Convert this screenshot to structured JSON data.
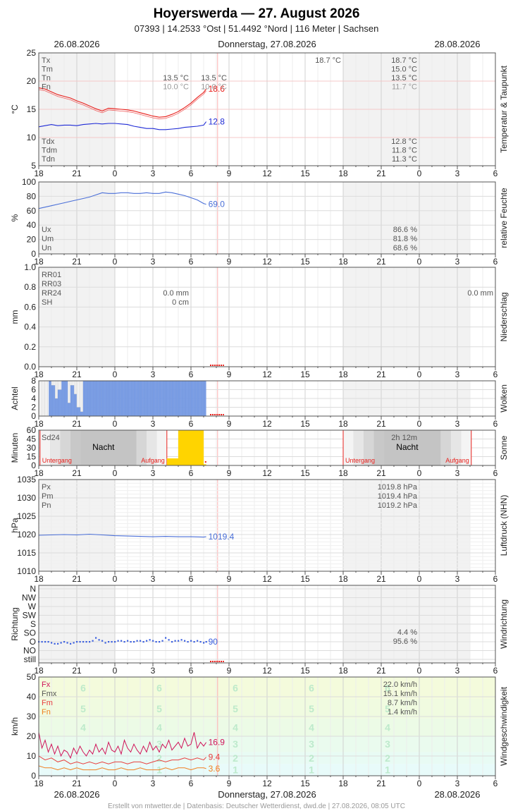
{
  "header": {
    "title": "Hoyerswerda  —  27. August 2026",
    "subtitle": "07393  |  14.2533 °Ost  |  51.4492 °Nord  |  116 Meter  |  Sachsen",
    "date_left": "26.08.2026",
    "date_center": "Donnerstag, 27.08.2026",
    "date_right": "28.08.2026"
  },
  "footer": {
    "date_left": "26.08.2026",
    "date_center": "Donnerstag, 27.08.2026",
    "date_right": "28.08.2026",
    "credit": "Erstellt von mtwetter.de | Datenbasis: Deutscher Wetterdienst, dwd.de | 27.08.2026, 08:05 UTC"
  },
  "x_ticks": [
    "18",
    "21",
    "0",
    "3",
    "6",
    "9",
    "12",
    "15",
    "18",
    "21",
    "0",
    "3",
    "6"
  ],
  "colors": {
    "red": "#e8201c",
    "blue": "#1f2bd6",
    "steel": "#4a6fd8",
    "orange": "#f08020",
    "magenta": "#d0145a",
    "cloud": "#7a9ee6",
    "sun": "#ffd400",
    "now": "#ff8080"
  },
  "chart_data": [
    {
      "id": "temp",
      "type": "line",
      "side_label": "Temperatur & Taupunkt",
      "ylabel": "°C",
      "ylim": [
        5,
        25
      ],
      "y_ticks": [
        "5",
        "10",
        "15",
        "20",
        "25"
      ],
      "series": [
        {
          "name": "Temperatur",
          "color": "#e8201c",
          "x": [
            18,
            18.5,
            19,
            19.5,
            20,
            20.5,
            21,
            21.5,
            22,
            22.5,
            23,
            23.5,
            24,
            24.5,
            25,
            25.5,
            26,
            26.5,
            27,
            27.5,
            28,
            28.5,
            29,
            29.5,
            30,
            30.5,
            31,
            31.2
          ],
          "values": [
            18.8,
            18.6,
            18.1,
            17.6,
            17.3,
            17.0,
            16.5,
            16.1,
            15.6,
            15.1,
            14.7,
            15.2,
            15.1,
            15.0,
            14.9,
            14.7,
            14.4,
            14.1,
            13.8,
            13.6,
            13.7,
            14.1,
            14.6,
            15.3,
            16.1,
            17.1,
            18.0,
            18.6
          ]
        },
        {
          "name": "Taupunkt",
          "color": "#1f2bd6",
          "x": [
            18,
            18.5,
            19,
            19.5,
            20,
            20.5,
            21,
            21.5,
            22,
            22.5,
            23,
            23.5,
            24,
            24.5,
            25,
            25.5,
            26,
            26.5,
            27,
            27.5,
            28,
            28.5,
            29,
            29.5,
            30,
            30.5,
            31,
            31.2
          ],
          "values": [
            11.9,
            12.1,
            12.3,
            12.1,
            12.2,
            12.2,
            12.1,
            12.3,
            12.4,
            12.5,
            12.4,
            12.5,
            12.5,
            12.4,
            12.3,
            12.0,
            11.8,
            11.6,
            11.6,
            11.4,
            11.4,
            11.5,
            11.6,
            11.8,
            11.9,
            12.0,
            12.2,
            12.8
          ]
        }
      ],
      "end_labels": [
        {
          "text": "18.6",
          "value": 18.6,
          "color": "#e8201c"
        },
        {
          "text": "12.8",
          "value": 12.8,
          "color": "#1f2bd6"
        }
      ],
      "stats_top_labels": [
        "Tx",
        "Tm",
        "Tn",
        "Fn"
      ],
      "stats_top_day1": [
        "",
        "",
        "13.5 °C",
        "10.0 °C"
      ],
      "stats_top_day2": [
        "",
        "",
        "13.5 °C",
        "10.0 °C"
      ],
      "stats_top_day3_max": "18.7 °C",
      "stats_top_right": [
        "18.7 °C",
        "15.0 °C",
        "13.5 °C",
        "11.7 °C"
      ],
      "stats_bottom_labels": [
        "Tdx",
        "Tdm",
        "Tdn"
      ],
      "stats_bottom_right": [
        "12.8 °C",
        "11.8 °C",
        "11.3 °C"
      ]
    },
    {
      "id": "humidity",
      "type": "line",
      "side_label": "relative Feuchte",
      "ylabel": "%",
      "ylim": [
        0,
        100
      ],
      "y_ticks": [
        "0",
        "20",
        "40",
        "60",
        "80",
        "100"
      ],
      "series": [
        {
          "name": "Feuchte",
          "color": "#4a6fd8",
          "x": [
            18,
            18.5,
            19,
            19.5,
            20,
            20.5,
            21,
            21.5,
            22,
            22.5,
            23,
            23.5,
            24,
            24.5,
            25,
            25.5,
            26,
            26.5,
            27,
            27.5,
            28,
            28.5,
            29,
            29.5,
            30,
            30.5,
            31,
            31.2
          ],
          "values": [
            63,
            65,
            67,
            69,
            71,
            73,
            75,
            77,
            79,
            82,
            85,
            84,
            84,
            85,
            85,
            84,
            84,
            85,
            84,
            84,
            86,
            85,
            83,
            81,
            78,
            75,
            70,
            69
          ]
        }
      ],
      "end_labels": [
        {
          "text": "69.0",
          "value": 69,
          "color": "#4a6fd8"
        }
      ],
      "stats_labels": [
        "Ux",
        "Um",
        "Un"
      ],
      "stats_right": [
        "86.6 %",
        "81.8 %",
        "68.6 %"
      ]
    },
    {
      "id": "precip",
      "type": "bar",
      "side_label": "Niederschlag",
      "ylabel": "mm",
      "ylim": [
        0,
        1.0
      ],
      "y_ticks": [
        "0.0",
        "0.2",
        "0.4",
        "0.6",
        "0.8",
        "1.0"
      ],
      "stats_labels": [
        "RR01",
        "RR03",
        "RR24",
        "SH"
      ],
      "stats_day1": [
        "",
        "",
        "0.0 mm",
        "0 cm"
      ],
      "stats_right": "0.0 mm"
    },
    {
      "id": "clouds",
      "type": "bar",
      "side_label": "Wolken",
      "ylabel": "Achtel",
      "ylim": [
        0,
        8
      ],
      "y_ticks": [
        "0",
        "2",
        "4",
        "6",
        "8"
      ],
      "values_hourly_x": [
        18,
        18.25,
        18.5,
        18.75,
        19,
        19.25,
        19.5,
        19.75,
        20,
        20.25,
        20.5,
        20.75,
        21,
        21.25,
        21.5,
        21.75,
        22,
        22.5,
        23,
        23.5,
        24,
        25,
        26,
        27,
        28,
        29,
        30,
        31,
        31.2
      ],
      "values": [
        0,
        0,
        0,
        8,
        7,
        4,
        6,
        8,
        8,
        3,
        7,
        5,
        2,
        1,
        8,
        8,
        8,
        8,
        8,
        8,
        8,
        8,
        8,
        8,
        8,
        8,
        8,
        8,
        8
      ],
      "color": "#7a9ee6"
    },
    {
      "id": "sun",
      "type": "bar",
      "side_label": "Sonne",
      "ylabel": "Minuten",
      "ylim": [
        0,
        60
      ],
      "y_ticks": [
        "0",
        "15",
        "30",
        "45",
        "60"
      ],
      "stat_label": "Sd24",
      "stat_right": "2h 12m",
      "night_label": "Nacht",
      "sunset_label": "Untergang",
      "sunrise_label": "Aufgang",
      "sunset_hours": [
        18.1,
        42.0
      ],
      "sunrise_hours": [
        28.1,
        52.1
      ],
      "sun_bars": [
        {
          "x": 28.1,
          "value": 12
        },
        {
          "x": 29.0,
          "value": 60
        },
        {
          "x": 30.0,
          "value": 60
        },
        {
          "x": 31.0,
          "value": 2
        }
      ],
      "color": "#ffd400"
    },
    {
      "id": "pressure",
      "type": "line",
      "side_label": "Luftdruck (NHN)",
      "ylabel": "hPa",
      "ylim": [
        1010,
        1035
      ],
      "y_ticks": [
        "1010",
        "1015",
        "1020",
        "1025",
        "1030",
        "1035"
      ],
      "series": [
        {
          "name": "Luftdruck",
          "color": "#4a6fd8",
          "x": [
            18,
            19,
            20,
            21,
            22,
            23,
            24,
            25,
            26,
            27,
            28,
            29,
            30,
            31,
            31.2
          ],
          "values": [
            1019.8,
            1019.9,
            1020.0,
            1019.9,
            1020.1,
            1019.9,
            1019.7,
            1019.6,
            1019.5,
            1019.4,
            1019.5,
            1019.4,
            1019.4,
            1019.3,
            1019.4
          ]
        }
      ],
      "end_labels": [
        {
          "text": "1019.4",
          "value": 1019.4,
          "color": "#4a6fd8"
        }
      ],
      "stats_labels": [
        "Px",
        "Pm",
        "Pn"
      ],
      "stats_right": [
        "1019.8 hPa",
        "1019.4 hPa",
        "1019.2 hPa"
      ]
    },
    {
      "id": "wind_dir",
      "type": "scatter",
      "side_label": "Windrichtung",
      "ylabel": "Richtung",
      "categories": [
        "still",
        "NO",
        "O",
        "SO",
        "S",
        "SW",
        "W",
        "NW",
        "N"
      ],
      "y_ticks": [
        "still",
        "NO",
        "O",
        "SO",
        "S",
        "SW",
        "W",
        "NW",
        "N"
      ],
      "series": [
        {
          "name": "Richtung",
          "color": "#3c60e0",
          "x": [
            18,
            18.25,
            18.5,
            18.75,
            19,
            19.25,
            19.5,
            19.75,
            20,
            20.25,
            20.5,
            20.75,
            21,
            21.25,
            21.5,
            21.75,
            22,
            22.25,
            22.5,
            22.75,
            23,
            23.25,
            23.5,
            23.75,
            24,
            24.25,
            24.5,
            24.75,
            25,
            25.25,
            25.5,
            25.75,
            26,
            26.25,
            26.5,
            26.75,
            27,
            27.25,
            27.5,
            27.75,
            28,
            28.25,
            28.5,
            28.75,
            29,
            29.25,
            29.5,
            29.75,
            30,
            30.25,
            30.5,
            30.75,
            31,
            31.2
          ],
          "values": [
            90,
            90,
            90,
            90,
            85,
            80,
            80,
            85,
            90,
            85,
            80,
            85,
            90,
            90,
            90,
            90,
            90,
            95,
            110,
            100,
            95,
            85,
            90,
            90,
            90,
            95,
            95,
            90,
            95,
            90,
            90,
            95,
            95,
            90,
            95,
            100,
            95,
            90,
            90,
            95,
            110,
            100,
            90,
            95,
            95,
            100,
            95,
            90,
            95,
            90,
            95,
            90,
            85,
            90
          ]
        }
      ],
      "end_labels": [
        {
          "text": "90",
          "value": 90,
          "color": "#3c60e0"
        }
      ],
      "stats_right": [
        "4.4 %",
        "95.6 %"
      ]
    },
    {
      "id": "wind_speed",
      "type": "line",
      "side_label": "Windgeschwindigkeit",
      "ylabel": "km/h",
      "ylim": [
        0,
        50
      ],
      "y_ticks": [
        "0",
        "10",
        "20",
        "30",
        "40",
        "50"
      ],
      "beaufort": [
        "1",
        "2",
        "3",
        "4",
        "5",
        "6"
      ],
      "series": [
        {
          "name": "Böen",
          "color": "#d0145a",
          "x": [
            18,
            18.25,
            18.5,
            18.75,
            19,
            19.25,
            19.5,
            19.75,
            20,
            20.25,
            20.5,
            20.75,
            21,
            21.25,
            21.5,
            21.75,
            22,
            22.25,
            22.5,
            22.75,
            23,
            23.25,
            23.5,
            23.75,
            24,
            24.25,
            24.5,
            24.75,
            25,
            25.25,
            25.5,
            25.75,
            26,
            26.25,
            26.5,
            26.75,
            27,
            27.25,
            27.5,
            27.75,
            28,
            28.25,
            28.5,
            28.75,
            29,
            29.25,
            29.5,
            29.75,
            30,
            30.25,
            30.5,
            30.75,
            31,
            31.2
          ],
          "values": [
            22,
            14,
            18,
            12,
            16,
            11,
            15,
            10,
            13,
            12,
            9,
            14,
            11,
            15,
            12,
            10,
            13,
            11,
            16,
            12,
            14,
            11,
            17,
            13,
            12,
            15,
            11,
            18,
            14,
            12,
            16,
            13,
            11,
            15,
            12,
            17,
            13,
            15,
            12,
            16,
            14,
            18,
            13,
            15,
            17,
            14,
            19,
            15,
            16,
            22,
            14,
            17,
            15,
            16.9
          ]
        },
        {
          "name": "Mittel",
          "color": "#e84040",
          "x": [
            18,
            18.5,
            19,
            19.5,
            20,
            20.5,
            21,
            21.5,
            22,
            22.5,
            23,
            23.5,
            24,
            24.5,
            25,
            25.5,
            26,
            26.5,
            27,
            27.5,
            28,
            28.5,
            29,
            29.5,
            30,
            30.5,
            31,
            31.2
          ],
          "values": [
            10,
            8,
            9,
            7,
            8,
            6,
            7,
            6,
            7,
            6,
            7,
            6,
            7,
            7,
            6,
            7,
            7,
            6,
            7,
            8,
            7,
            8,
            8,
            9,
            8,
            9,
            8,
            9.4
          ]
        },
        {
          "name": "Minimum",
          "color": "#f08020",
          "x": [
            18,
            18.5,
            19,
            19.5,
            20,
            20.5,
            21,
            21.5,
            22,
            22.5,
            23,
            23.5,
            24,
            24.5,
            25,
            25.5,
            26,
            26.5,
            27,
            27.5,
            28,
            28.5,
            29,
            29.5,
            30,
            30.5,
            31,
            31.2
          ],
          "values": [
            5,
            4,
            4,
            3,
            4,
            3,
            4,
            3,
            3,
            3,
            4,
            3,
            3,
            4,
            3,
            3,
            4,
            3,
            3,
            3,
            4,
            3,
            4,
            4,
            3,
            4,
            4,
            3.6
          ]
        }
      ],
      "end_labels": [
        {
          "text": "16.9",
          "value": 16.9,
          "color": "#d0145a"
        },
        {
          "text": "9.4",
          "value": 9.4,
          "color": "#e84040"
        },
        {
          "text": "3.6",
          "value": 3.6,
          "color": "#f08020"
        }
      ],
      "stats_labels": [
        "Fx",
        "Fmx",
        "Fm",
        "Fn"
      ],
      "stats_label_colors": [
        "#d0145a",
        "#555555",
        "#e84040",
        "#f08020"
      ],
      "stats_right": [
        "22.0 km/h",
        "15.1 km/h",
        "8.7 km/h",
        "1.4 km/h"
      ]
    }
  ]
}
